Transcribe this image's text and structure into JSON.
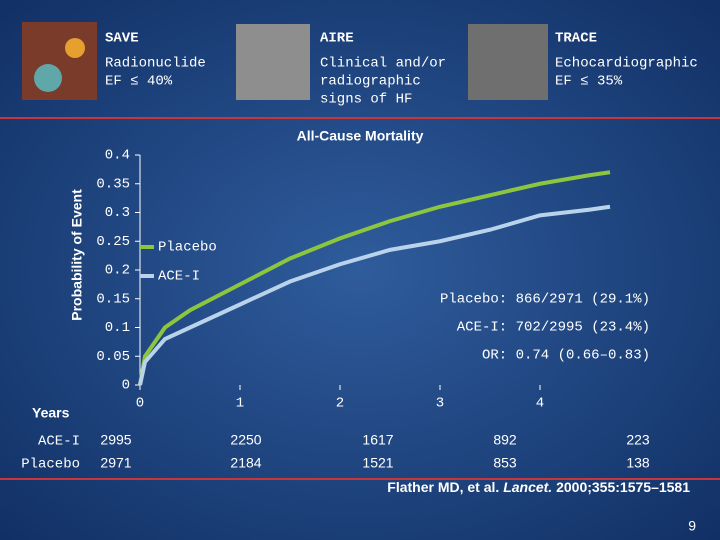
{
  "header": {
    "studies": [
      {
        "name": "SAVE",
        "description": [
          "Radionuclide",
          "EF ≤ 40%"
        ]
      },
      {
        "name": "AIRE",
        "description": [
          "Clinical and/or",
          "radiographic",
          "signs of HF"
        ]
      },
      {
        "name": "TRACE",
        "description": [
          "Echocardiographic",
          "EF ≤ 35%"
        ]
      }
    ]
  },
  "chart_data": {
    "type": "line",
    "title": "All-Cause Mortality",
    "y_label": "Probability of Event",
    "x": [
      0,
      0.05,
      0.25,
      0.5,
      1,
      1.5,
      2,
      2.5,
      3,
      3.5,
      4,
      4.5,
      4.7
    ],
    "series": [
      {
        "name": "Placebo",
        "color": "#8cc63e",
        "values": [
          0,
          0.05,
          0.1,
          0.13,
          0.175,
          0.22,
          0.255,
          0.285,
          0.31,
          0.33,
          0.35,
          0.365,
          0.37
        ]
      },
      {
        "name": "ACE-I",
        "color": "#b9d3ea",
        "values": [
          0,
          0.04,
          0.08,
          0.1,
          0.14,
          0.18,
          0.21,
          0.235,
          0.25,
          0.27,
          0.295,
          0.305,
          0.31
        ]
      }
    ],
    "xlim": [
      0,
      4.7
    ],
    "xticks": [
      0,
      1,
      2,
      3,
      4
    ],
    "ylim": [
      0,
      0.4
    ],
    "yticks": [
      0,
      0.05,
      0.1,
      0.15,
      0.2,
      0.25,
      0.3,
      0.35,
      0.4
    ],
    "annotations": [
      "Placebo: 866/2971 (29.1%)",
      "ACE-I: 702/2995 (23.4%)",
      "OR: 0.74 (0.66–0.83)"
    ]
  },
  "risk_table": {
    "title": "Years",
    "rows": [
      {
        "label": "ACE-I",
        "values": [
          "2995",
          "2250",
          "1617",
          "892",
          "223"
        ]
      },
      {
        "label": "Placebo",
        "values": [
          "2971",
          "2184",
          "1521",
          "853",
          "138"
        ]
      }
    ]
  },
  "citation": {
    "authors": "Flather MD, et al.",
    "journal": "Lancet.",
    "details": "2000;355:1575–1581"
  },
  "page_number": "9"
}
